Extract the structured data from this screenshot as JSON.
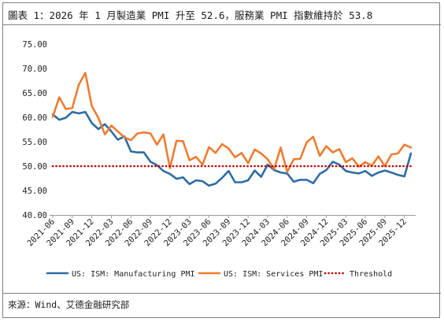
{
  "title": "圖表 1：2026 年 1 月製造業 PMI 升至 52.6，服務業 PMI 指數維持於 53.8",
  "source": "來源：Wind、艾德金融研究部",
  "chart_data": {
    "type": "line",
    "ylim": [
      40,
      75
    ],
    "yticks": [
      "40.00",
      "45.00",
      "50.00",
      "55.00",
      "60.00",
      "65.00",
      "70.00",
      "75.00"
    ],
    "xticks": [
      "2021-06",
      "2021-09",
      "2021-12",
      "2022-03",
      "2022-06",
      "2022-09",
      "2022-12",
      "2023-03",
      "2023-06",
      "2023-09",
      "2023-12",
      "2024-03",
      "2024-06",
      "2024-09",
      "2024-12",
      "2025-03",
      "2025-06",
      "2025-09",
      "2025-12"
    ],
    "x": [
      "2021-06",
      "2021-07",
      "2021-08",
      "2021-09",
      "2021-10",
      "2021-11",
      "2021-12",
      "2022-01",
      "2022-02",
      "2022-03",
      "2022-04",
      "2022-05",
      "2022-06",
      "2022-07",
      "2022-08",
      "2022-09",
      "2022-10",
      "2022-11",
      "2022-12",
      "2023-01",
      "2023-02",
      "2023-03",
      "2023-04",
      "2023-05",
      "2023-06",
      "2023-07",
      "2023-08",
      "2023-09",
      "2023-10",
      "2023-11",
      "2023-12",
      "2024-01",
      "2024-02",
      "2024-03",
      "2024-04",
      "2024-05",
      "2024-06",
      "2024-07",
      "2024-08",
      "2024-09",
      "2024-10",
      "2024-11",
      "2024-12",
      "2025-01",
      "2025-02",
      "2025-03",
      "2025-04",
      "2025-05",
      "2025-06",
      "2025-07",
      "2025-08",
      "2025-09",
      "2025-10",
      "2025-11",
      "2025-12",
      "2026-01"
    ],
    "series": [
      {
        "name": "US: ISM: Manufacturing PMI",
        "color": "#2e6ca4",
        "values": [
          60.6,
          59.5,
          59.9,
          61.1,
          60.8,
          61.1,
          58.8,
          57.6,
          58.6,
          57.1,
          55.4,
          56.1,
          53.0,
          52.8,
          52.8,
          50.9,
          50.2,
          49.0,
          48.4,
          47.4,
          47.7,
          46.3,
          47.1,
          46.9,
          46.0,
          46.4,
          47.6,
          49.0,
          46.7,
          46.7,
          47.1,
          49.1,
          47.8,
          50.3,
          49.2,
          48.7,
          48.5,
          46.8,
          47.2,
          47.2,
          46.5,
          48.4,
          49.2,
          50.9,
          50.3,
          49.0,
          48.7,
          48.5,
          49.0,
          48.0,
          48.7,
          49.1,
          48.7,
          48.2,
          47.9,
          52.6
        ]
      },
      {
        "name": "US: ISM: Services PMI",
        "color": "#ed7d31",
        "values": [
          60.1,
          64.1,
          61.7,
          61.9,
          66.7,
          69.1,
          62.3,
          59.9,
          56.5,
          58.3,
          57.1,
          55.9,
          55.3,
          56.7,
          56.9,
          56.7,
          54.4,
          56.5,
          49.6,
          55.2,
          55.1,
          51.2,
          51.9,
          50.3,
          53.9,
          52.7,
          54.5,
          53.6,
          51.8,
          52.7,
          50.6,
          53.4,
          52.6,
          51.4,
          49.4,
          53.8,
          48.8,
          51.4,
          51.5,
          54.9,
          56.0,
          52.1,
          54.1,
          52.8,
          53.5,
          50.8,
          51.6,
          49.9,
          50.8,
          50.1,
          52.0,
          50.0,
          52.4,
          52.6,
          54.4,
          53.8
        ]
      },
      {
        "name": "Threshold",
        "color": "#c00000",
        "values": [
          50,
          50,
          50,
          50,
          50,
          50,
          50,
          50,
          50,
          50,
          50,
          50,
          50,
          50,
          50,
          50,
          50,
          50,
          50,
          50,
          50,
          50,
          50,
          50,
          50,
          50,
          50,
          50,
          50,
          50,
          50,
          50,
          50,
          50,
          50,
          50,
          50,
          50,
          50,
          50,
          50,
          50,
          50,
          50,
          50,
          50,
          50,
          50,
          50,
          50,
          50,
          50,
          50,
          50,
          50,
          50
        ]
      }
    ]
  }
}
